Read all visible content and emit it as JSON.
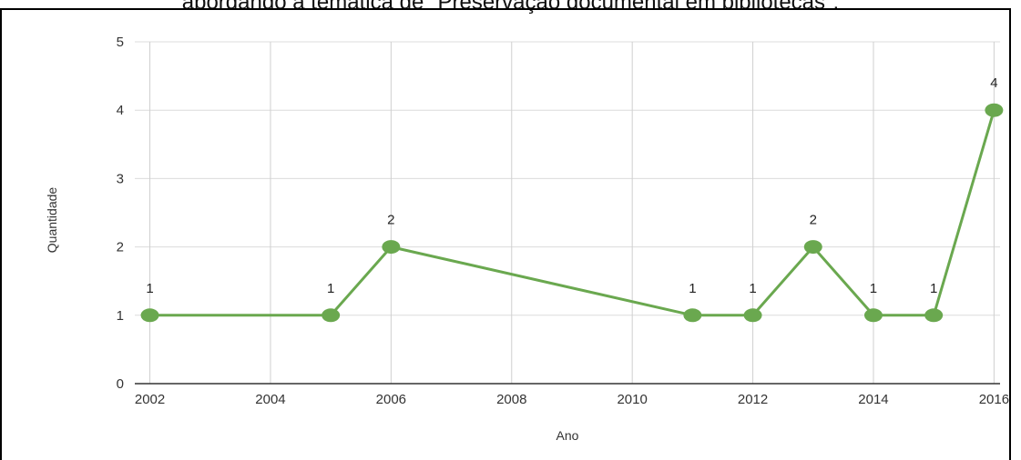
{
  "header": {
    "title": "abordando a temática de \"Preservação documental em bibliotecas\"."
  },
  "chart_data": {
    "type": "line",
    "xlabel": "Ano",
    "ylabel": "Quantidade",
    "xlim": [
      2002,
      2016
    ],
    "ylim": [
      0,
      5
    ],
    "x_ticks": [
      "2002",
      "2004",
      "2006",
      "2008",
      "2010",
      "2012",
      "2014",
      "2016"
    ],
    "y_ticks": [
      "0",
      "1",
      "2",
      "3",
      "4",
      "5"
    ],
    "grid": true,
    "legend": "none",
    "series": [
      {
        "x": [
          2002,
          2005,
          2006,
          2011,
          2012,
          2013,
          2014,
          2015,
          2016
        ],
        "y": [
          1,
          1,
          2,
          1,
          1,
          2,
          1,
          1,
          4
        ],
        "labels": [
          "1",
          "1",
          "2",
          "1",
          "1",
          "2",
          "1",
          "1",
          "4"
        ],
        "color": "#6aa84f"
      }
    ]
  }
}
